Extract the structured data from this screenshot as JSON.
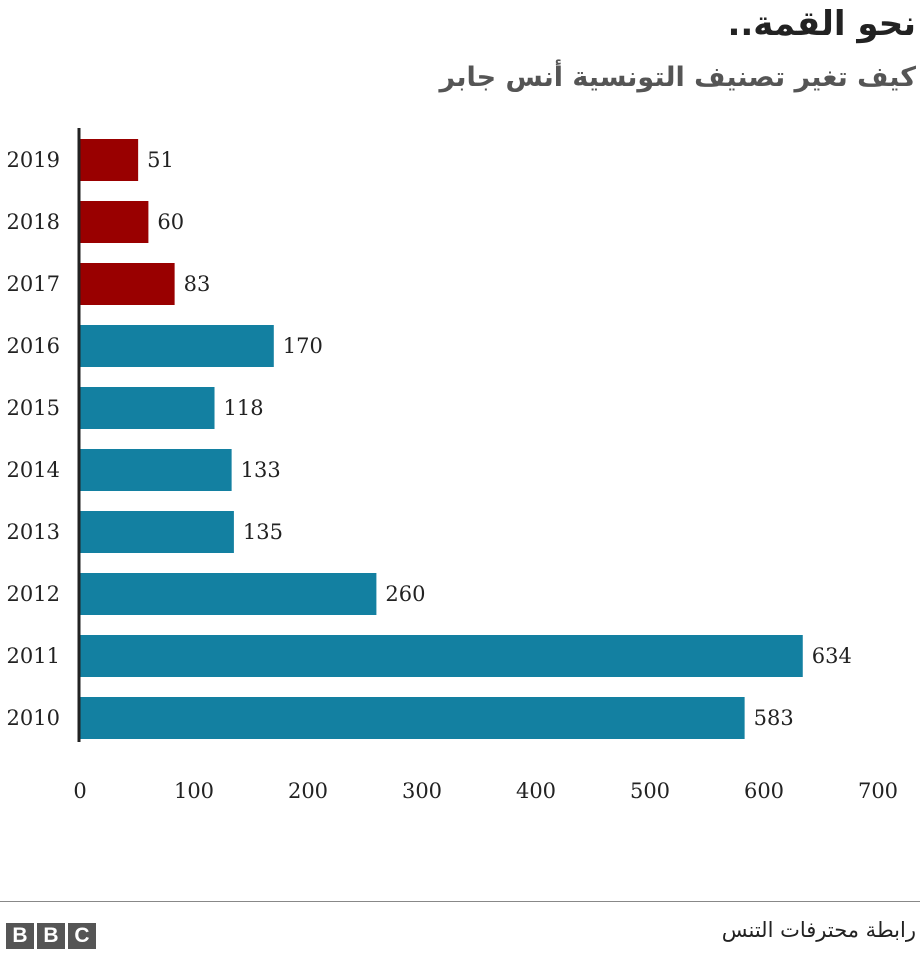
{
  "header": {
    "title": "نحو القمة..",
    "subtitle": "كيف تغير تصنيف التونسية أنس جابر"
  },
  "footer": {
    "source": "رابطة محترفات التنس",
    "logo_letters": [
      "B",
      "B",
      "C"
    ]
  },
  "colors": {
    "highlight": "#990000",
    "default": "#1380A1",
    "axis": "#222222"
  },
  "chart_data": {
    "type": "bar",
    "orientation": "horizontal",
    "categories": [
      "2019",
      "2018",
      "2017",
      "2016",
      "2015",
      "2014",
      "2013",
      "2012",
      "2011",
      "2010"
    ],
    "values": [
      51,
      60,
      83,
      170,
      118,
      133,
      135,
      260,
      634,
      583
    ],
    "highlighted_categories": [
      "2019",
      "2018",
      "2017"
    ],
    "xlim": [
      0,
      700
    ],
    "xticks": [
      0,
      100,
      200,
      300,
      400,
      500,
      600,
      700
    ],
    "grid": false,
    "data_labels": true
  }
}
